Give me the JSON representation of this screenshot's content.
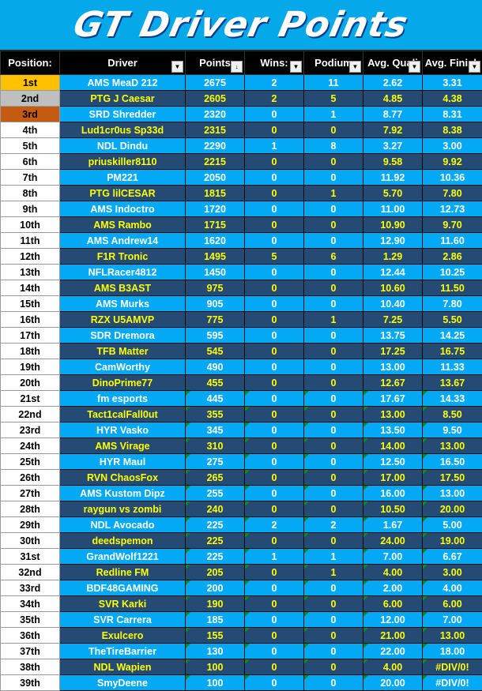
{
  "title": "GT Driver Points",
  "columns": {
    "position": "Position:",
    "driver": "Driver",
    "points": "Points",
    "wins": "Wins:",
    "podium": "Podium",
    "avg_quali": "Avg. Quali",
    "avg_finish": "Avg. Finish"
  },
  "rows": [
    {
      "pos": "1st",
      "driver": "AMS MeaD 212",
      "points": "2675",
      "wins": "2",
      "podium": "11",
      "quali": "2.62",
      "finish": "3.31",
      "medal": "gold"
    },
    {
      "pos": "2nd",
      "driver": "PTG J Caesar",
      "points": "2605",
      "wins": "2",
      "podium": "5",
      "quali": "4.85",
      "finish": "4.38",
      "medal": "silver"
    },
    {
      "pos": "3rd",
      "driver": "SRD Shredder",
      "points": "2320",
      "wins": "0",
      "podium": "1",
      "quali": "8.77",
      "finish": "8.31",
      "medal": "bronze"
    },
    {
      "pos": "4th",
      "driver": "Lud1cr0us Sp33d",
      "points": "2315",
      "wins": "0",
      "podium": "0",
      "quali": "7.92",
      "finish": "8.38"
    },
    {
      "pos": "5th",
      "driver": "NDL Dindu",
      "points": "2290",
      "wins": "1",
      "podium": "8",
      "quali": "3.27",
      "finish": "3.00"
    },
    {
      "pos": "6th",
      "driver": "priuskiller8110",
      "points": "2215",
      "wins": "0",
      "podium": "0",
      "quali": "9.58",
      "finish": "9.92"
    },
    {
      "pos": "7th",
      "driver": "PM221",
      "points": "2050",
      "wins": "0",
      "podium": "0",
      "quali": "11.92",
      "finish": "10.36"
    },
    {
      "pos": "8th",
      "driver": "PTG lilCESAR",
      "points": "1815",
      "wins": "0",
      "podium": "1",
      "quali": "5.70",
      "finish": "7.80"
    },
    {
      "pos": "9th",
      "driver": "AMS Indoctro",
      "points": "1720",
      "wins": "0",
      "podium": "0",
      "quali": "11.00",
      "finish": "12.73"
    },
    {
      "pos": "10th",
      "driver": "AMS Rambo",
      "points": "1715",
      "wins": "0",
      "podium": "0",
      "quali": "10.90",
      "finish": "9.70"
    },
    {
      "pos": "11th",
      "driver": "AMS Andrew14",
      "points": "1620",
      "wins": "0",
      "podium": "0",
      "quali": "12.90",
      "finish": "11.60"
    },
    {
      "pos": "12th",
      "driver": "F1R Tronic",
      "points": "1495",
      "wins": "5",
      "podium": "6",
      "quali": "1.29",
      "finish": "2.86"
    },
    {
      "pos": "13th",
      "driver": "NFLRacer4812",
      "points": "1450",
      "wins": "0",
      "podium": "0",
      "quali": "12.44",
      "finish": "10.25"
    },
    {
      "pos": "14th",
      "driver": "AMS B3AST",
      "points": "975",
      "wins": "0",
      "podium": "0",
      "quali": "10.60",
      "finish": "11.50"
    },
    {
      "pos": "15th",
      "driver": "AMS Murks",
      "points": "905",
      "wins": "0",
      "podium": "0",
      "quali": "10.40",
      "finish": "7.80"
    },
    {
      "pos": "16th",
      "driver": "RZX U5AMVP",
      "points": "775",
      "wins": "0",
      "podium": "1",
      "quali": "7.25",
      "finish": "5.50"
    },
    {
      "pos": "17th",
      "driver": "SDR Dremora",
      "points": "595",
      "wins": "0",
      "podium": "0",
      "quali": "13.75",
      "finish": "14.25"
    },
    {
      "pos": "18th",
      "driver": "TFB Matter",
      "points": "545",
      "wins": "0",
      "podium": "0",
      "quali": "17.25",
      "finish": "16.75"
    },
    {
      "pos": "19th",
      "driver": "CamWorthy",
      "points": "490",
      "wins": "0",
      "podium": "0",
      "quali": "13.00",
      "finish": "11.33"
    },
    {
      "pos": "20th",
      "driver": "DinoPrime77",
      "points": "455",
      "wins": "0",
      "podium": "0",
      "quali": "12.67",
      "finish": "13.67"
    },
    {
      "pos": "21st",
      "driver": "fm esports",
      "points": "445",
      "wins": "0",
      "podium": "0",
      "quali": "17.67",
      "finish": "14.33",
      "flag": true
    },
    {
      "pos": "22nd",
      "driver": "Tact1calFall0ut",
      "points": "355",
      "wins": "0",
      "podium": "0",
      "quali": "13.00",
      "finish": "8.50",
      "flag": true
    },
    {
      "pos": "23rd",
      "driver": "HYR Vasko",
      "points": "345",
      "wins": "0",
      "podium": "0",
      "quali": "13.50",
      "finish": "9.50",
      "flag": true
    },
    {
      "pos": "24th",
      "driver": "AMS Virage",
      "points": "310",
      "wins": "0",
      "podium": "0",
      "quali": "14.00",
      "finish": "13.00",
      "flag": true
    },
    {
      "pos": "25th",
      "driver": "HYR Maul",
      "points": "275",
      "wins": "0",
      "podium": "0",
      "quali": "12.50",
      "finish": "16.50",
      "flag": true
    },
    {
      "pos": "26th",
      "driver": "RVN ChaosFox",
      "points": "265",
      "wins": "0",
      "podium": "0",
      "quali": "17.00",
      "finish": "17.50",
      "flag": true
    },
    {
      "pos": "27th",
      "driver": "AMS Kustom Dipz",
      "points": "255",
      "wins": "0",
      "podium": "0",
      "quali": "16.00",
      "finish": "13.00",
      "flag": true
    },
    {
      "pos": "28th",
      "driver": "raygun vs zombi",
      "points": "240",
      "wins": "0",
      "podium": "0",
      "quali": "10.50",
      "finish": "20.00",
      "flag": true
    },
    {
      "pos": "29th",
      "driver": "NDL Avocado",
      "points": "225",
      "wins": "2",
      "podium": "2",
      "quali": "1.67",
      "finish": "5.00",
      "flag": true
    },
    {
      "pos": "30th",
      "driver": "deedspemon",
      "points": "225",
      "wins": "0",
      "podium": "0",
      "quali": "24.00",
      "finish": "19.00",
      "flag": true
    },
    {
      "pos": "31st",
      "driver": "GrandWolf1221",
      "points": "225",
      "wins": "1",
      "podium": "1",
      "quali": "7.00",
      "finish": "6.67",
      "flag": true
    },
    {
      "pos": "32nd",
      "driver": "Redline FM",
      "points": "205",
      "wins": "0",
      "podium": "1",
      "quali": "4.00",
      "finish": "3.00",
      "flag": true
    },
    {
      "pos": "33rd",
      "driver": "BDF48GAMING",
      "points": "200",
      "wins": "0",
      "podium": "0",
      "quali": "2.00",
      "finish": "4.00",
      "flag": true
    },
    {
      "pos": "34th",
      "driver": "SVR Karki",
      "points": "190",
      "wins": "0",
      "podium": "0",
      "quali": "6.00",
      "finish": "6.00",
      "flag": true
    },
    {
      "pos": "35th",
      "driver": "SVR Carrera",
      "points": "185",
      "wins": "0",
      "podium": "0",
      "quali": "12.00",
      "finish": "7.00",
      "flag": true
    },
    {
      "pos": "36th",
      "driver": "Exulcero",
      "points": "155",
      "wins": "0",
      "podium": "0",
      "quali": "21.00",
      "finish": "13.00",
      "flag": true
    },
    {
      "pos": "37th",
      "driver": "TheTireBarrier",
      "points": "130",
      "wins": "0",
      "podium": "0",
      "quali": "22.00",
      "finish": "18.00",
      "flag": true
    },
    {
      "pos": "38th",
      "driver": "NDL Wapien",
      "points": "100",
      "wins": "0",
      "podium": "0",
      "quali": "4.00",
      "finish": "#DIV/0!",
      "flag": true
    },
    {
      "pos": "39th",
      "driver": "SmyDeene",
      "points": "100",
      "wins": "0",
      "podium": "0",
      "quali": "20.00",
      "finish": "#DIV/0!",
      "flag": true
    }
  ]
}
